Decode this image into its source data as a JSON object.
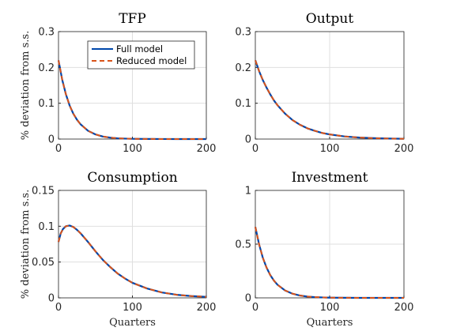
{
  "chart_data": [
    {
      "type": "line",
      "title": "TFP",
      "ylabel": "% deviation from s.s.",
      "xlabel": "",
      "xlim": [
        0,
        200
      ],
      "ylim": [
        0,
        0.3
      ],
      "xticks": [
        "0",
        "100",
        "200"
      ],
      "yticks": [
        "0",
        "0.1",
        "0.2",
        "0.3"
      ],
      "grid": true,
      "legend": "top-right",
      "x": [
        0,
        5,
        10,
        15,
        20,
        25,
        30,
        40,
        50,
        60,
        70,
        80,
        90,
        100,
        120,
        140,
        160,
        180,
        200
      ],
      "series": [
        {
          "name": "Full model",
          "color": "#0047ab",
          "dash": "solid",
          "values": [
            0.22,
            0.166,
            0.125,
            0.094,
            0.071,
            0.054,
            0.041,
            0.023,
            0.013,
            0.007,
            0.004,
            0.002,
            0.0012,
            0.0007,
            0.0002,
            0.0001,
            0.0,
            0.0,
            0.0
          ]
        },
        {
          "name": "Reduced model",
          "color": "#d95319",
          "dash": "dashed",
          "values": [
            0.22,
            0.166,
            0.125,
            0.094,
            0.071,
            0.054,
            0.041,
            0.023,
            0.013,
            0.007,
            0.004,
            0.002,
            0.0012,
            0.0007,
            0.0002,
            0.0001,
            0.0,
            0.0,
            0.0
          ]
        }
      ]
    },
    {
      "type": "line",
      "title": "Output",
      "ylabel": "",
      "xlabel": "",
      "xlim": [
        0,
        200
      ],
      "ylim": [
        0,
        0.3
      ],
      "xticks": [
        "0",
        "100",
        "200"
      ],
      "yticks": [
        "0",
        "0.1",
        "0.2",
        "0.3"
      ],
      "grid": true,
      "x": [
        0,
        5,
        10,
        15,
        20,
        25,
        30,
        40,
        50,
        60,
        70,
        80,
        90,
        100,
        120,
        140,
        160,
        180,
        200
      ],
      "series": [
        {
          "name": "Full model",
          "color": "#0047ab",
          "dash": "solid",
          "values": [
            0.22,
            0.19,
            0.165,
            0.144,
            0.125,
            0.108,
            0.094,
            0.071,
            0.053,
            0.04,
            0.03,
            0.023,
            0.017,
            0.013,
            0.0073,
            0.0041,
            0.0024,
            0.0013,
            0.0008
          ]
        },
        {
          "name": "Reduced model",
          "color": "#d95319",
          "dash": "dashed",
          "values": [
            0.22,
            0.19,
            0.165,
            0.144,
            0.125,
            0.108,
            0.094,
            0.071,
            0.053,
            0.04,
            0.03,
            0.023,
            0.017,
            0.013,
            0.0073,
            0.0041,
            0.0024,
            0.0013,
            0.0008
          ]
        }
      ]
    },
    {
      "type": "line",
      "title": "Consumption",
      "ylabel": "% deviation from s.s.",
      "xlabel": "Quarters",
      "xlim": [
        0,
        200
      ],
      "ylim": [
        0,
        0.15
      ],
      "xticks": [
        "0",
        "100",
        "200"
      ],
      "yticks": [
        "0",
        "0.05",
        "0.1",
        "0.15"
      ],
      "grid": true,
      "x": [
        0,
        3,
        6,
        10,
        15,
        20,
        25,
        30,
        40,
        50,
        60,
        70,
        80,
        90,
        100,
        120,
        140,
        160,
        180,
        200
      ],
      "series": [
        {
          "name": "Full model",
          "color": "#0047ab",
          "dash": "solid",
          "values": [
            0.078,
            0.09,
            0.096,
            0.1,
            0.101,
            0.099,
            0.095,
            0.09,
            0.078,
            0.065,
            0.053,
            0.043,
            0.034,
            0.027,
            0.021,
            0.013,
            0.0075,
            0.0043,
            0.0025,
            0.0014
          ]
        },
        {
          "name": "Reduced model",
          "color": "#d95319",
          "dash": "dashed",
          "values": [
            0.078,
            0.09,
            0.096,
            0.1,
            0.101,
            0.099,
            0.095,
            0.09,
            0.078,
            0.065,
            0.053,
            0.043,
            0.034,
            0.027,
            0.021,
            0.013,
            0.0075,
            0.0043,
            0.0025,
            0.0014
          ]
        }
      ]
    },
    {
      "type": "line",
      "title": "Investment",
      "ylabel": "",
      "xlabel": "Quarters",
      "xlim": [
        0,
        200
      ],
      "ylim": [
        0,
        1
      ],
      "xticks": [
        "0",
        "100",
        "200"
      ],
      "yticks": [
        "0",
        "0.5",
        "1"
      ],
      "grid": true,
      "x": [
        0,
        5,
        10,
        15,
        20,
        25,
        30,
        40,
        50,
        60,
        70,
        80,
        90,
        100,
        120,
        140,
        160,
        180,
        200
      ],
      "series": [
        {
          "name": "Full model",
          "color": "#0047ab",
          "dash": "solid",
          "values": [
            0.66,
            0.5,
            0.375,
            0.283,
            0.213,
            0.161,
            0.121,
            0.069,
            0.039,
            0.022,
            0.012,
            0.007,
            0.004,
            0.002,
            0.0007,
            0.0002,
            0.0001,
            0.0,
            0.0
          ]
        },
        {
          "name": "Reduced model",
          "color": "#d95319",
          "dash": "dashed",
          "values": [
            0.66,
            0.5,
            0.375,
            0.283,
            0.213,
            0.161,
            0.121,
            0.069,
            0.039,
            0.022,
            0.012,
            0.007,
            0.004,
            0.002,
            0.0007,
            0.0002,
            0.0001,
            0.0,
            0.0
          ]
        }
      ]
    }
  ]
}
